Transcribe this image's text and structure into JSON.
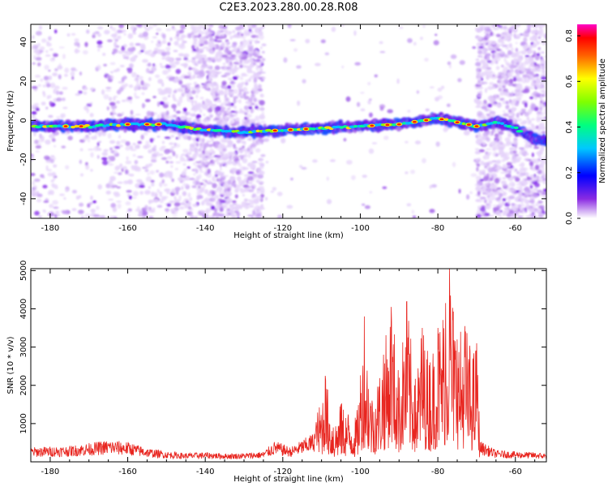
{
  "title": "C2E3.2023.280.00.28.R08",
  "chart_data": [
    {
      "type": "heatmap",
      "xlabel": "Height of straight line (km)",
      "ylabel": "Frequency (Hz)",
      "xlim": [
        -185,
        -52
      ],
      "ylim": [
        -50,
        49
      ],
      "xticks": [
        -180,
        -160,
        -140,
        -120,
        -100,
        -80,
        -60
      ],
      "yticks": [
        -40,
        -20,
        0,
        20,
        40
      ],
      "ridge": {
        "x": [
          -185,
          -170,
          -160,
          -150,
          -140,
          -130,
          -120,
          -110,
          -100,
          -90,
          -80,
          -70,
          -65,
          -60,
          -55
        ],
        "frequency": [
          -3,
          -3,
          -2,
          -2,
          -5,
          -6,
          -5,
          -4,
          -3,
          -2,
          1,
          -3,
          -1,
          -4,
          -10
        ]
      },
      "colorbar": {
        "label": "Normalized spectral amplitude",
        "range": [
          0.0,
          0.85
        ],
        "ticks": [
          "0.0",
          "0.2",
          "0.4",
          "0.6",
          "0.8"
        ]
      }
    },
    {
      "type": "line",
      "xlabel": "Height of straight line (km)",
      "ylabel": "SNR (10 * v/v)",
      "xlim": [
        -185,
        -52
      ],
      "ylim": [
        0,
        5050
      ],
      "xticks": [
        -180,
        -160,
        -140,
        -120,
        -100,
        -80,
        -60
      ],
      "yticks": [
        1000,
        2000,
        3000,
        4000,
        5000
      ],
      "series": [
        {
          "color": "#e8251f",
          "x": [
            -185,
            -175,
            -165,
            -160,
            -155,
            -150,
            -145,
            -140,
            -135,
            -130,
            -125,
            -122,
            -118,
            -112,
            -109,
            -107,
            -105,
            -101,
            -99,
            -97,
            -94,
            -92,
            -90,
            -88,
            -86,
            -84,
            -82,
            -80,
            -78,
            -77,
            -75,
            -73,
            -71,
            -70,
            -69,
            -65,
            -60,
            -55,
            -52
          ],
          "values": [
            350,
            380,
            520,
            480,
            330,
            250,
            210,
            230,
            200,
            210,
            250,
            500,
            350,
            700,
            2250,
            900,
            1500,
            1100,
            3800,
            1600,
            2800,
            4050,
            2200,
            4200,
            2000,
            3500,
            2600,
            3500,
            4150,
            5050,
            3200,
            3550,
            2700,
            3100,
            500,
            280,
            250,
            230,
            200
          ]
        }
      ]
    }
  ]
}
